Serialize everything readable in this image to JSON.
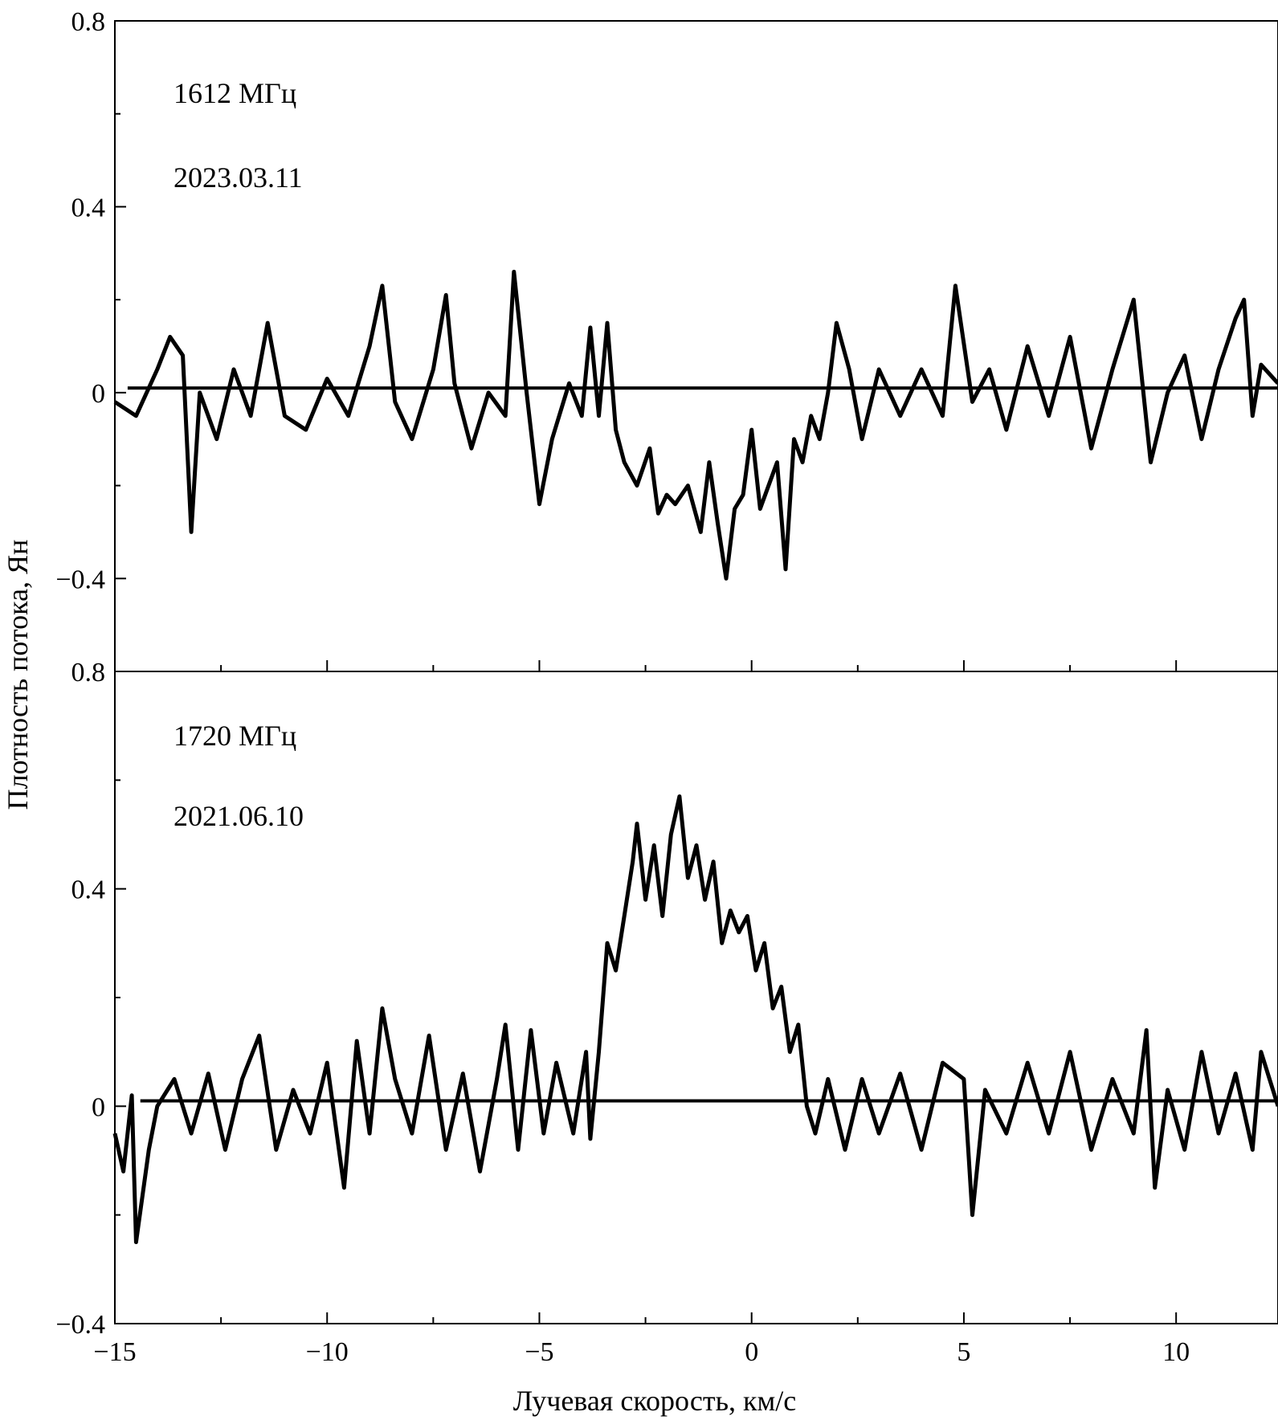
{
  "figure": {
    "ylabel": "Плотность потока, Ян",
    "xlabel": "Лучевая скорость, км/с",
    "xlim": [
      -15,
      12.4
    ],
    "xticks": [
      -15,
      -10,
      -5,
      0,
      5,
      10
    ],
    "xtick_labels": [
      "−15",
      "−10",
      "−5",
      "0",
      "5",
      "10"
    ]
  },
  "chart_data": [
    {
      "type": "line",
      "annotations": [
        "1612 МГц",
        "2023.03.11"
      ],
      "xlabel": "Лучевая скорость, км/с",
      "ylabel": "Плотность потока, Ян",
      "xlim": [
        -15,
        12.4
      ],
      "ylim": [
        -0.6,
        0.8
      ],
      "yticks": [
        -0.4,
        0,
        0.4,
        0.8
      ],
      "ytick_labels": [
        "−0.4",
        "0",
        "0.4",
        "0.8"
      ],
      "grid": false,
      "series": [
        {
          "role": "spectrum",
          "points": [
            [
              -15.0,
              -0.02
            ],
            [
              -14.5,
              -0.05
            ],
            [
              -14.0,
              0.05
            ],
            [
              -13.7,
              0.12
            ],
            [
              -13.4,
              0.08
            ],
            [
              -13.2,
              -0.3
            ],
            [
              -13.0,
              0.0
            ],
            [
              -12.6,
              -0.1
            ],
            [
              -12.2,
              0.05
            ],
            [
              -11.8,
              -0.05
            ],
            [
              -11.4,
              0.15
            ],
            [
              -11.0,
              -0.05
            ],
            [
              -10.5,
              -0.08
            ],
            [
              -10.0,
              0.03
            ],
            [
              -9.5,
              -0.05
            ],
            [
              -9.0,
              0.1
            ],
            [
              -8.7,
              0.23
            ],
            [
              -8.4,
              -0.02
            ],
            [
              -8.0,
              -0.1
            ],
            [
              -7.5,
              0.05
            ],
            [
              -7.2,
              0.21
            ],
            [
              -7.0,
              0.02
            ],
            [
              -6.6,
              -0.12
            ],
            [
              -6.2,
              0.0
            ],
            [
              -5.8,
              -0.05
            ],
            [
              -5.6,
              0.26
            ],
            [
              -5.3,
              0.0
            ],
            [
              -5.0,
              -0.24
            ],
            [
              -4.7,
              -0.1
            ],
            [
              -4.3,
              0.02
            ],
            [
              -4.0,
              -0.05
            ],
            [
              -3.8,
              0.14
            ],
            [
              -3.6,
              -0.05
            ],
            [
              -3.4,
              0.15
            ],
            [
              -3.2,
              -0.08
            ],
            [
              -3.0,
              -0.15
            ],
            [
              -2.7,
              -0.2
            ],
            [
              -2.4,
              -0.12
            ],
            [
              -2.2,
              -0.26
            ],
            [
              -2.0,
              -0.22
            ],
            [
              -1.8,
              -0.24
            ],
            [
              -1.5,
              -0.2
            ],
            [
              -1.2,
              -0.3
            ],
            [
              -1.0,
              -0.15
            ],
            [
              -0.8,
              -0.28
            ],
            [
              -0.6,
              -0.4
            ],
            [
              -0.4,
              -0.25
            ],
            [
              -0.2,
              -0.22
            ],
            [
              0.0,
              -0.08
            ],
            [
              0.2,
              -0.25
            ],
            [
              0.4,
              -0.2
            ],
            [
              0.6,
              -0.15
            ],
            [
              0.8,
              -0.38
            ],
            [
              1.0,
              -0.1
            ],
            [
              1.2,
              -0.15
            ],
            [
              1.4,
              -0.05
            ],
            [
              1.6,
              -0.1
            ],
            [
              1.8,
              0.0
            ],
            [
              2.0,
              0.15
            ],
            [
              2.3,
              0.05
            ],
            [
              2.6,
              -0.1
            ],
            [
              3.0,
              0.05
            ],
            [
              3.5,
              -0.05
            ],
            [
              4.0,
              0.05
            ],
            [
              4.5,
              -0.05
            ],
            [
              4.8,
              0.23
            ],
            [
              5.2,
              -0.02
            ],
            [
              5.6,
              0.05
            ],
            [
              6.0,
              -0.08
            ],
            [
              6.5,
              0.1
            ],
            [
              7.0,
              -0.05
            ],
            [
              7.5,
              0.12
            ],
            [
              8.0,
              -0.12
            ],
            [
              8.5,
              0.05
            ],
            [
              9.0,
              0.2
            ],
            [
              9.4,
              -0.15
            ],
            [
              9.8,
              0.0
            ],
            [
              10.2,
              0.08
            ],
            [
              10.6,
              -0.1
            ],
            [
              11.0,
              0.05
            ],
            [
              11.4,
              0.16
            ],
            [
              11.6,
              0.2
            ],
            [
              11.8,
              -0.05
            ],
            [
              12.0,
              0.06
            ],
            [
              12.4,
              0.02
            ]
          ]
        },
        {
          "role": "baseline",
          "points": [
            [
              -14.7,
              0.01
            ],
            [
              12.4,
              0.01
            ]
          ]
        }
      ]
    },
    {
      "type": "line",
      "annotations": [
        "1720 МГц",
        "2021.06.10"
      ],
      "xlabel": "Лучевая скорость, км/с",
      "ylabel": "Плотность потока, Ян",
      "xlim": [
        -15,
        12.4
      ],
      "ylim": [
        -0.4,
        0.8
      ],
      "yticks": [
        -0.4,
        0,
        0.4,
        0.8
      ],
      "ytick_labels": [
        "−0.4",
        "0",
        "0.4",
        "0.8"
      ],
      "grid": false,
      "series": [
        {
          "role": "spectrum",
          "points": [
            [
              -15.0,
              -0.05
            ],
            [
              -14.8,
              -0.12
            ],
            [
              -14.6,
              0.02
            ],
            [
              -14.5,
              -0.25
            ],
            [
              -14.2,
              -0.08
            ],
            [
              -14.0,
              0.0
            ],
            [
              -13.6,
              0.05
            ],
            [
              -13.2,
              -0.05
            ],
            [
              -12.8,
              0.06
            ],
            [
              -12.4,
              -0.08
            ],
            [
              -12.0,
              0.05
            ],
            [
              -11.6,
              0.13
            ],
            [
              -11.2,
              -0.08
            ],
            [
              -10.8,
              0.03
            ],
            [
              -10.4,
              -0.05
            ],
            [
              -10.0,
              0.08
            ],
            [
              -9.6,
              -0.15
            ],
            [
              -9.3,
              0.12
            ],
            [
              -9.0,
              -0.05
            ],
            [
              -8.7,
              0.18
            ],
            [
              -8.4,
              0.05
            ],
            [
              -8.0,
              -0.05
            ],
            [
              -7.6,
              0.13
            ],
            [
              -7.2,
              -0.08
            ],
            [
              -6.8,
              0.06
            ],
            [
              -6.4,
              -0.12
            ],
            [
              -6.0,
              0.05
            ],
            [
              -5.8,
              0.15
            ],
            [
              -5.5,
              -0.08
            ],
            [
              -5.2,
              0.14
            ],
            [
              -4.9,
              -0.05
            ],
            [
              -4.6,
              0.08
            ],
            [
              -4.2,
              -0.05
            ],
            [
              -3.9,
              0.1
            ],
            [
              -3.8,
              -0.06
            ],
            [
              -3.6,
              0.1
            ],
            [
              -3.4,
              0.3
            ],
            [
              -3.2,
              0.25
            ],
            [
              -3.0,
              0.35
            ],
            [
              -2.8,
              0.45
            ],
            [
              -2.7,
              0.52
            ],
            [
              -2.5,
              0.38
            ],
            [
              -2.3,
              0.48
            ],
            [
              -2.1,
              0.35
            ],
            [
              -1.9,
              0.5
            ],
            [
              -1.7,
              0.57
            ],
            [
              -1.5,
              0.42
            ],
            [
              -1.3,
              0.48
            ],
            [
              -1.1,
              0.38
            ],
            [
              -0.9,
              0.45
            ],
            [
              -0.7,
              0.3
            ],
            [
              -0.5,
              0.36
            ],
            [
              -0.3,
              0.32
            ],
            [
              -0.1,
              0.35
            ],
            [
              0.1,
              0.25
            ],
            [
              0.3,
              0.3
            ],
            [
              0.5,
              0.18
            ],
            [
              0.7,
              0.22
            ],
            [
              0.9,
              0.1
            ],
            [
              1.1,
              0.15
            ],
            [
              1.3,
              0.0
            ],
            [
              1.5,
              -0.05
            ],
            [
              1.8,
              0.05
            ],
            [
              2.2,
              -0.08
            ],
            [
              2.6,
              0.05
            ],
            [
              3.0,
              -0.05
            ],
            [
              3.5,
              0.06
            ],
            [
              4.0,
              -0.08
            ],
            [
              4.5,
              0.08
            ],
            [
              5.0,
              0.05
            ],
            [
              5.2,
              -0.2
            ],
            [
              5.5,
              0.03
            ],
            [
              6.0,
              -0.05
            ],
            [
              6.5,
              0.08
            ],
            [
              7.0,
              -0.05
            ],
            [
              7.5,
              0.1
            ],
            [
              8.0,
              -0.08
            ],
            [
              8.5,
              0.05
            ],
            [
              9.0,
              -0.05
            ],
            [
              9.3,
              0.14
            ],
            [
              9.5,
              -0.15
            ],
            [
              9.8,
              0.03
            ],
            [
              10.2,
              -0.08
            ],
            [
              10.6,
              0.1
            ],
            [
              11.0,
              -0.05
            ],
            [
              11.4,
              0.06
            ],
            [
              11.8,
              -0.08
            ],
            [
              12.0,
              0.1
            ],
            [
              12.4,
              0.0
            ]
          ]
        },
        {
          "role": "baseline",
          "points": [
            [
              -14.4,
              0.01
            ],
            [
              12.4,
              0.01
            ]
          ]
        }
      ]
    }
  ]
}
